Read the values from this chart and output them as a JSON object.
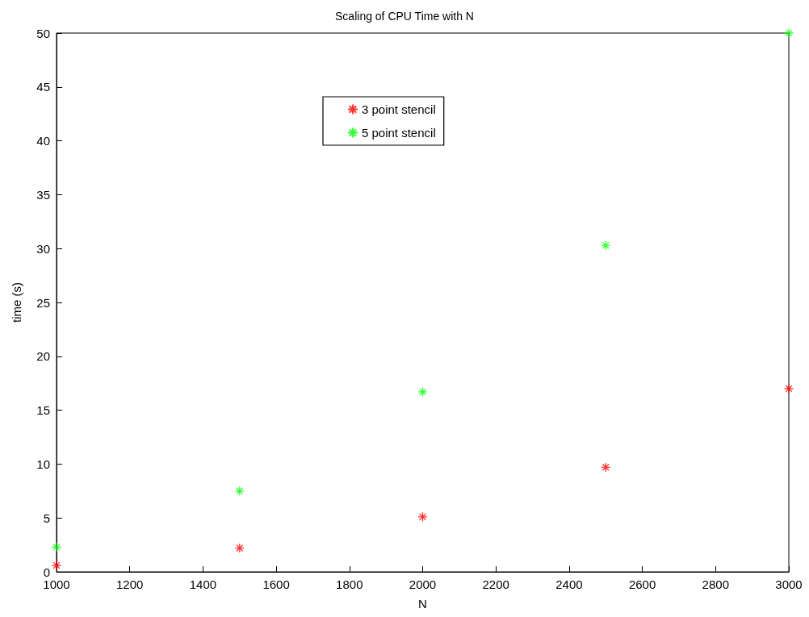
{
  "chart_data": {
    "type": "scatter",
    "title": "Scaling of CPU Time with N",
    "xlabel": "N",
    "ylabel": "time (s)",
    "x": [
      1000,
      1500,
      2000,
      2500,
      3000
    ],
    "series": [
      {
        "name": "3 point stencil",
        "color": "#ff0000",
        "values": [
          0.6,
          2.2,
          5.1,
          9.7,
          17.0
        ]
      },
      {
        "name": "5 point stencil",
        "color": "#00ff00",
        "values": [
          2.3,
          7.5,
          16.7,
          30.3,
          50.0
        ]
      }
    ],
    "xlim": [
      1000,
      3000
    ],
    "xticks": [
      1000,
      1200,
      1400,
      1600,
      1800,
      2000,
      2200,
      2400,
      2600,
      2800,
      3000
    ],
    "ylim": [
      0,
      50
    ],
    "yticks": [
      0,
      5,
      10,
      15,
      20,
      25,
      30,
      35,
      40,
      45,
      50
    ],
    "marker": "cross",
    "legend": "top",
    "grid": false
  }
}
